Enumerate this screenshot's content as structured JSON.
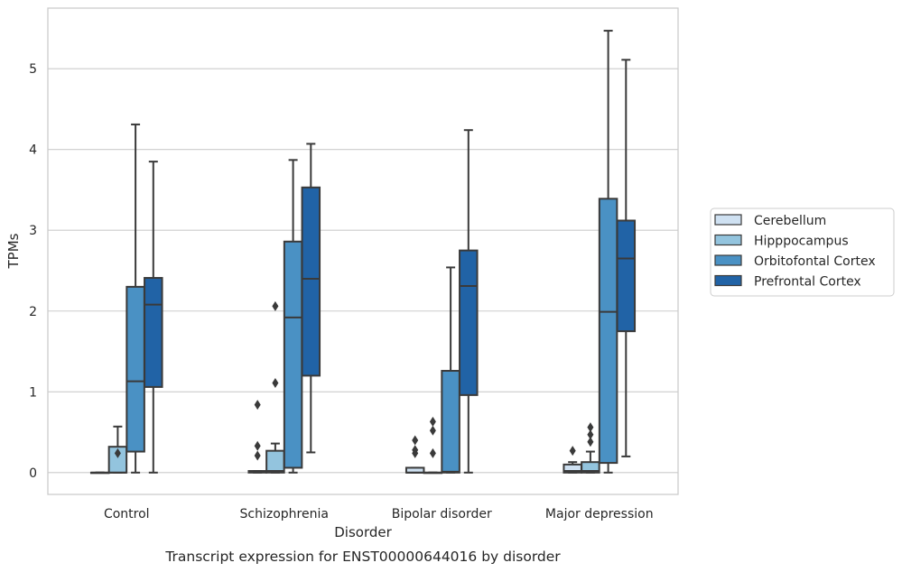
{
  "chart_data": {
    "type": "box",
    "caption": "Transcript expression for ENST00000644016 by disorder",
    "xlabel": "Disorder",
    "ylabel": "TPMs",
    "ylim": [
      -0.27,
      5.75
    ],
    "yticks": [
      0,
      1,
      2,
      3,
      4,
      5
    ],
    "grid": true,
    "legend_position": "right",
    "categories": [
      "Control",
      "Schizophrenia",
      "Bipolar disorder",
      "Major depression"
    ],
    "series": [
      {
        "name": "Cerebellum",
        "color": "#cfe1f2",
        "boxes": [
          {
            "whislo": 0,
            "q1": 0,
            "med": 0,
            "q3": 0,
            "whishi": 0,
            "fliers": []
          },
          {
            "whislo": 0,
            "q1": 0,
            "med": 0.01,
            "q3": 0.02,
            "whishi": 0.02,
            "fliers": [
              0.21,
              0.33,
              0.84
            ]
          },
          {
            "whislo": 0,
            "q1": 0,
            "med": 0,
            "q3": 0.06,
            "whishi": 0.06,
            "fliers": [
              0.24,
              0.28,
              0.4
            ]
          },
          {
            "whislo": 0,
            "q1": 0,
            "med": 0.02,
            "q3": 0.1,
            "whishi": 0.13,
            "fliers": [
              0.27
            ]
          }
        ]
      },
      {
        "name": "Hipppocampus",
        "color": "#93c4de",
        "boxes": [
          {
            "whislo": 0,
            "q1": 0,
            "med": 0,
            "q3": 0.32,
            "whishi": 0.57,
            "fliers": [
              0.24
            ]
          },
          {
            "whislo": 0,
            "q1": 0,
            "med": 0.02,
            "q3": 0.27,
            "whishi": 0.36,
            "fliers": [
              1.11,
              2.06
            ]
          },
          {
            "whislo": 0,
            "q1": 0,
            "med": 0,
            "q3": 0,
            "whishi": 0,
            "fliers": [
              0.24,
              0.52,
              0.63
            ]
          },
          {
            "whislo": 0,
            "q1": 0,
            "med": 0.02,
            "q3": 0.13,
            "whishi": 0.26,
            "fliers": [
              0.38,
              0.47,
              0.56
            ]
          }
        ]
      },
      {
        "name": "Orbitofontal Cortex",
        "color": "#4a91c4",
        "boxes": [
          {
            "whislo": 0,
            "q1": 0.26,
            "med": 1.13,
            "q3": 2.3,
            "whishi": 4.31,
            "fliers": []
          },
          {
            "whislo": 0,
            "q1": 0.06,
            "med": 1.92,
            "q3": 2.86,
            "whishi": 3.87,
            "fliers": []
          },
          {
            "whislo": 0,
            "q1": 0,
            "med": 0.01,
            "q3": 1.26,
            "whishi": 2.54,
            "fliers": []
          },
          {
            "whislo": 0,
            "q1": 0.12,
            "med": 1.99,
            "q3": 3.39,
            "whishi": 5.47,
            "fliers": []
          }
        ]
      },
      {
        "name": "Prefrontal Cortex",
        "color": "#2163a6",
        "boxes": [
          {
            "whislo": 0,
            "q1": 1.06,
            "med": 2.08,
            "q3": 2.41,
            "whishi": 3.85,
            "fliers": []
          },
          {
            "whislo": 0.25,
            "q1": 1.2,
            "med": 2.4,
            "q3": 3.53,
            "whishi": 4.07,
            "fliers": []
          },
          {
            "whislo": 0,
            "q1": 0.96,
            "med": 2.31,
            "q3": 2.75,
            "whishi": 4.24,
            "fliers": []
          },
          {
            "whislo": 0.2,
            "q1": 1.75,
            "med": 2.65,
            "q3": 3.12,
            "whishi": 5.11,
            "fliers": []
          }
        ]
      }
    ]
  }
}
